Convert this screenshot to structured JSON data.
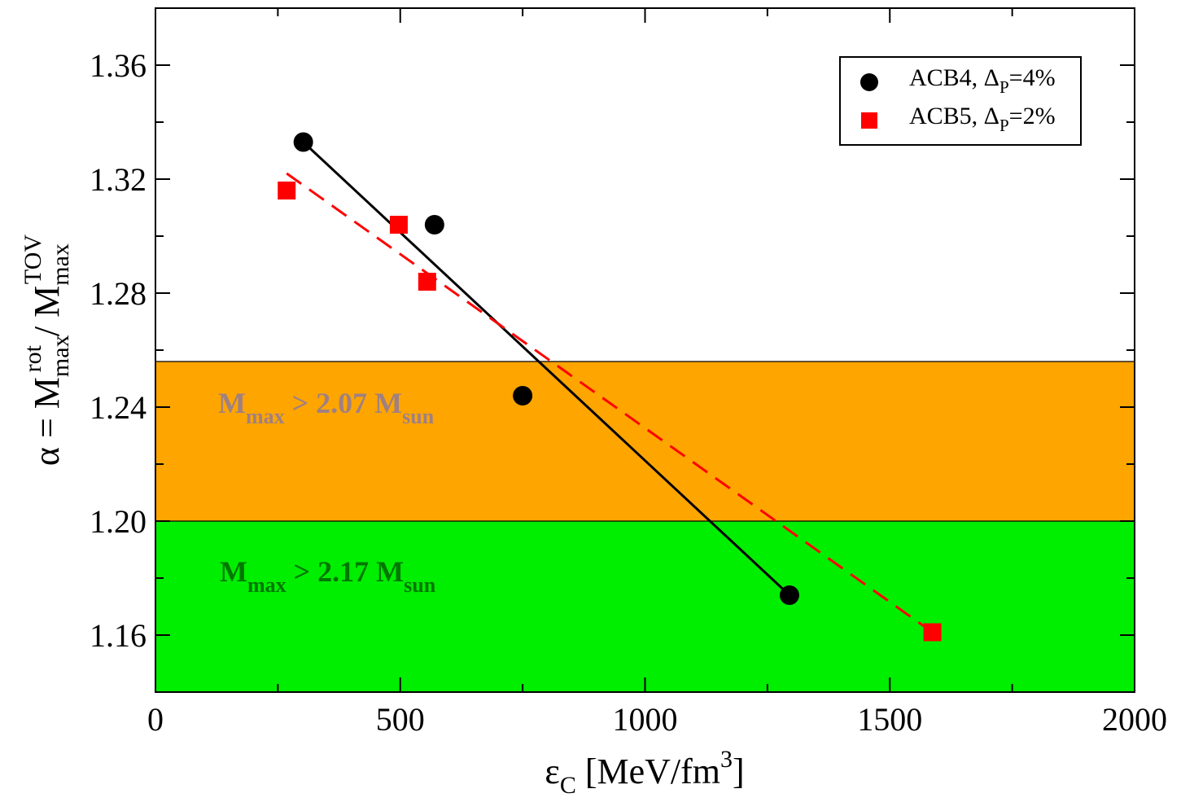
{
  "chart_data": {
    "type": "scatter",
    "xlabel": {
      "main": "ε",
      "sub": "C",
      "rest": " [MeV/fm",
      "sup": "3",
      "end": "]"
    },
    "ylabel": {
      "alpha": "α = M",
      "sub1": "max",
      "sup1": "rot",
      "slash": " / M",
      "sub2": "max",
      "sup2": "TOV"
    },
    "xlim": [
      0,
      2000
    ],
    "ylim": [
      1.14,
      1.38
    ],
    "x_ticks": [
      "0",
      "500",
      "1000",
      "1500",
      "2000"
    ],
    "x_tick_values": [
      0,
      500,
      1000,
      1500,
      2000
    ],
    "y_ticks": [
      "1.16",
      "1.20",
      "1.24",
      "1.28",
      "1.32",
      "1.36"
    ],
    "y_tick_values": [
      1.16,
      1.2,
      1.24,
      1.28,
      1.32,
      1.36
    ],
    "grid": false,
    "legend_position": "top-right",
    "series": [
      {
        "name_main": "ACB4, Δ",
        "name_sub": "P",
        "name_end": "=4%",
        "marker": "circle",
        "color": "#000000",
        "points": [
          {
            "x": 302,
            "y": 1.333
          },
          {
            "x": 570,
            "y": 1.304
          },
          {
            "x": 750,
            "y": 1.244
          },
          {
            "x": 1295,
            "y": 1.174
          }
        ],
        "fit": {
          "x": [
            302,
            1295
          ],
          "y": [
            1.333,
            1.174
          ],
          "style": "solid"
        }
      },
      {
        "name_main": "ACB5, Δ",
        "name_sub": "P",
        "name_end": "=2%",
        "marker": "square",
        "color": "#ff0000",
        "points": [
          {
            "x": 268,
            "y": 1.316
          },
          {
            "x": 497,
            "y": 1.304
          },
          {
            "x": 555,
            "y": 1.284
          },
          {
            "x": 1587,
            "y": 1.161
          }
        ],
        "fit": {
          "x": [
            268,
            1587
          ],
          "y": [
            1.322,
            1.161
          ],
          "style": "dashed"
        }
      }
    ],
    "bands": [
      {
        "y0": 1.2,
        "y1": 1.256,
        "color": "#ffa500",
        "label_main": "M",
        "label_sub1": "max",
        "label_mid": " > 2.07 M",
        "label_sub2": "sun",
        "label_color": "#a08080"
      },
      {
        "y0": 1.14,
        "y1": 1.2,
        "color": "#00ee00",
        "label_main": "M",
        "label_sub1": "max",
        "label_mid": " > 2.17 M",
        "label_sub2": "sun",
        "label_color": "#007700"
      }
    ]
  }
}
